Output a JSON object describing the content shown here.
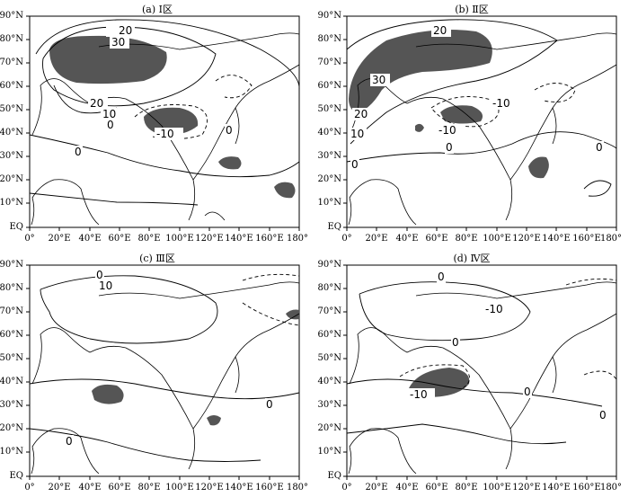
{
  "panels": [
    {
      "title": "(a) Ⅰ区",
      "contour_labels": [
        "20",
        "30",
        "20",
        "10",
        "0",
        "-10",
        "0",
        "0"
      ]
    },
    {
      "title": "(b) Ⅱ区",
      "contour_labels": [
        "20",
        "30",
        "20",
        "10",
        "-10",
        "-10",
        "0",
        "0",
        "0"
      ]
    },
    {
      "title": "(c) Ⅲ区",
      "contour_labels": [
        "10",
        "0",
        "0",
        "0"
      ]
    },
    {
      "title": "(d) Ⅳ区",
      "contour_labels": [
        "0",
        "-10",
        "0",
        "0",
        "0",
        "-10"
      ]
    }
  ],
  "lat_labels": [
    "90°N",
    "80°N",
    "70°N",
    "60°N",
    "50°N",
    "40°N",
    "30°N",
    "20°N",
    "10°N",
    "EQ"
  ],
  "lon_labels": [
    "0°",
    "20°E",
    "40°E",
    "60°E",
    "80°E",
    "100°E",
    "120°E",
    "140°E",
    "160°E",
    "180°"
  ],
  "colors": {
    "shading": "#555555",
    "line": "#000000",
    "background": "#ffffff"
  }
}
